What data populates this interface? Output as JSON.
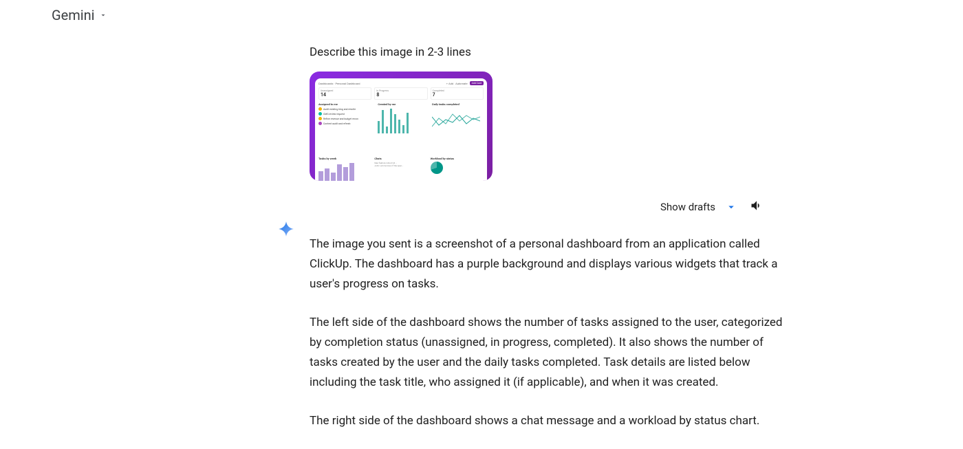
{
  "header": {
    "app_name": "Gemini"
  },
  "prompt": {
    "text": "Describe this image in 2-3 lines"
  },
  "thumbnail": {
    "frame_color_start": "#8a2be2",
    "frame_color_end": "#7b1fa2",
    "breadcrumb": "Dashboards  ·  Personal Dashboard",
    "right_links": [
      "+ Add",
      "Automate"
    ],
    "primary_button": "Add Card",
    "metrics": [
      {
        "label": "Unassigned",
        "value": "14"
      },
      {
        "label": "In Progress",
        "value": "8"
      },
      {
        "label": "Completed",
        "value": "7"
      }
    ],
    "assigned_title": "Assigned to me",
    "assigned_items": [
      {
        "title": "Audit existing blog and rewrite",
        "avatar": "#f4b400"
      },
      {
        "title": "CMS review request",
        "avatar": "#00bfa5"
      },
      {
        "title": "Refine revenue and budget recon",
        "avatar": "#f4b400"
      },
      {
        "title": "Content audit and refresh",
        "avatar": "#ab47bc"
      }
    ],
    "created_title": "Created by me",
    "created_bars_color": "#4db6ac",
    "created_bars": [
      18,
      34,
      10,
      36,
      28,
      20,
      12,
      30
    ],
    "daily_title": "Daily tasks completed",
    "line_color_a": "#4db6ac",
    "line_color_b": "#26a69a",
    "tasks_by_week_title": "Tasks by week",
    "week_bars_color": "#b39ddb",
    "week_bars": [
      14,
      18,
      12,
      24,
      20,
      26
    ],
    "chats_title": "Chats",
    "workload_title": "Workload by status",
    "pie_colors": [
      "#009688",
      "#4db6ac"
    ]
  },
  "actions": {
    "show_drafts_label": "Show drafts"
  },
  "response": {
    "para1": "The image you sent is a screenshot of a personal dashboard from an application called ClickUp. The dashboard has a purple background and displays various widgets that track a user's progress on tasks.",
    "para2": "The left side of the dashboard shows the number of tasks assigned to the user, categorized by completion status (unassigned, in progress, completed). It also shows the number of tasks created by the user and the daily tasks completed. Task details are listed below including the task title, who assigned it (if applicable), and when it was created.",
    "para3": "The right side of the dashboard shows a chat message and a workload by status chart."
  },
  "colors": {
    "spark_gradient": [
      "#1a73e8",
      "#8ab4f8"
    ]
  }
}
